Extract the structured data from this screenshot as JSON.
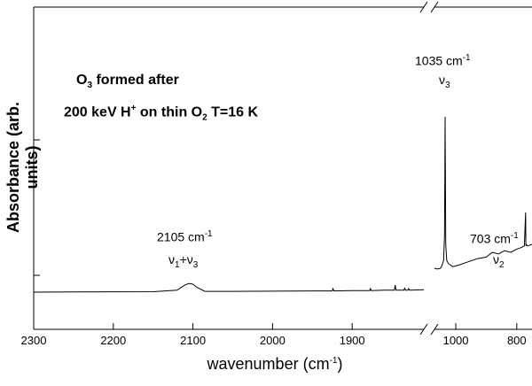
{
  "chart_data": {
    "type": "line",
    "title": "",
    "xlabel": "wavenumber (cm",
    "xlabel_sup": "-1",
    "xlabel_close": ")",
    "ylabel": "Absorbance (arb. units)",
    "axis_break": true,
    "grid": false,
    "x_left_ticks": [
      "2300",
      "2200",
      "2100",
      "2000",
      "1900"
    ],
    "x_right_ticks": [
      "1000",
      "800"
    ],
    "x_left_range": [
      2300,
      1810
    ],
    "x_right_range": [
      1070,
      750
    ],
    "y_ticks_shown": false,
    "series": [
      {
        "segment": "left",
        "x": [
          2300,
          2250,
          2200,
          2150,
          2120,
          2110,
          2105,
          2100,
          2095,
          2085,
          2050,
          2000,
          1950,
          1925,
          1924,
          1923,
          1900,
          1878,
          1877,
          1876,
          1860,
          1847,
          1846,
          1845,
          1840,
          1835,
          1834,
          1833,
          1830,
          1829,
          1828,
          1810
        ],
        "y": [
          0.0,
          0.01,
          0.02,
          0.03,
          0.12,
          0.45,
          0.55,
          0.5,
          0.3,
          0.05,
          0.05,
          0.06,
          0.08,
          0.08,
          0.22,
          0.08,
          0.1,
          0.1,
          0.22,
          0.1,
          0.12,
          0.12,
          0.45,
          0.12,
          0.13,
          0.13,
          0.25,
          0.13,
          0.13,
          0.22,
          0.13,
          0.15
        ]
      },
      {
        "segment": "right",
        "x": [
          1070,
          1060,
          1050,
          1045,
          1040,
          1037,
          1036,
          1035,
          1034,
          1033,
          1030,
          1025,
          1010,
          990,
          960,
          930,
          900,
          880,
          860,
          840,
          820,
          800,
          785,
          775,
          771,
          770,
          769,
          765,
          750
        ],
        "y": [
          1.5,
          1.45,
          1.5,
          1.7,
          2.0,
          3.5,
          7.0,
          11.0,
          7.0,
          3.0,
          2.0,
          1.8,
          1.6,
          1.7,
          1.9,
          2.1,
          2.2,
          2.5,
          2.4,
          2.6,
          2.5,
          2.7,
          2.8,
          2.9,
          5.0,
          2.9,
          3.0,
          2.9,
          3.0
        ]
      }
    ]
  },
  "annotations": {
    "line1_prefix": "O",
    "line1_sub": "3",
    "line1_suffix": " formed after",
    "line2_a": "200 keV H",
    "line2_sup": "+",
    "line2_b": " on thin O",
    "line2_sub": "2",
    "line2_c": " T=16 K",
    "peak1035_label": "1035 cm",
    "peak1035_sup": "-1",
    "peak1035_mode": "ν",
    "peak1035_mode_sub": "3",
    "peak2105_label": "2105 cm",
    "peak2105_sup": "-1",
    "peak2105_mode_a": "ν",
    "peak2105_mode_a_sub": "1",
    "peak2105_mode_plus": "+ν",
    "peak2105_mode_b_sub": "3",
    "peak703_label": "703 cm",
    "peak703_sup": "-1",
    "peak703_mode": "ν",
    "peak703_mode_sub": "2"
  }
}
